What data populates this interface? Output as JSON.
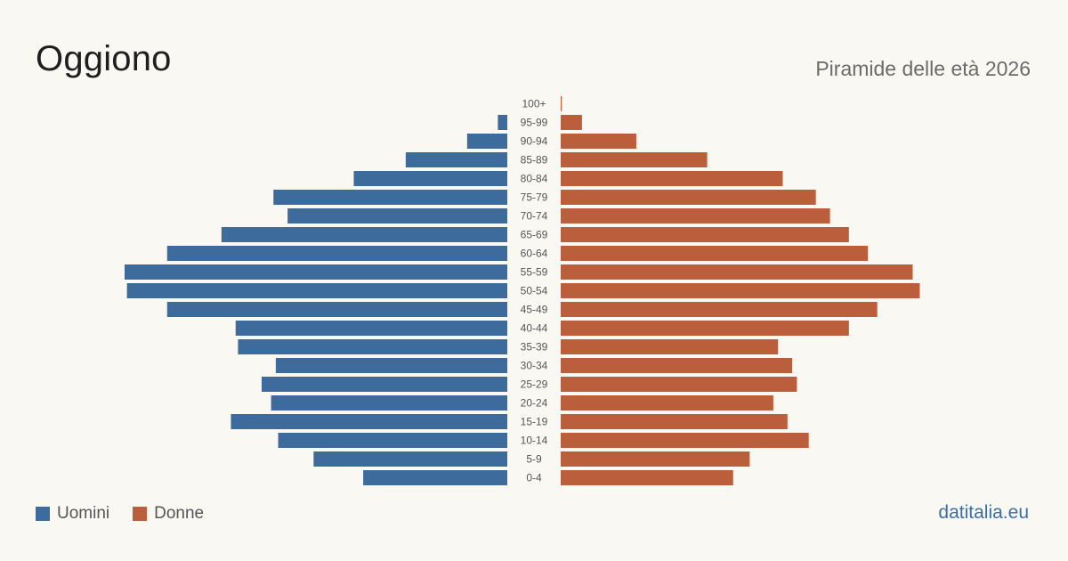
{
  "header": {
    "title": "Oggiono",
    "subtitle": "Piramide delle età 2026"
  },
  "legend": {
    "men_label": "Uomini",
    "women_label": "Donne"
  },
  "brand": "datitalia.eu",
  "colors": {
    "men": "#3d6b9c",
    "women": "#bb5e3c",
    "background": "#faf8f3",
    "label": "#555555"
  },
  "chart_data": {
    "type": "bar",
    "orientation": "horizontal-pyramid",
    "categories": [
      "100+",
      "95-99",
      "90-94",
      "85-89",
      "80-84",
      "75-79",
      "70-74",
      "65-69",
      "60-64",
      "55-59",
      "50-54",
      "45-49",
      "40-44",
      "35-39",
      "30-34",
      "25-29",
      "20-24",
      "15-19",
      "10-14",
      "5-9",
      "0-4"
    ],
    "series": [
      {
        "name": "Uomini",
        "values": [
          0,
          4,
          17,
          43,
          65,
          99,
          93,
          121,
          144,
          162,
          161,
          144,
          115,
          114,
          98,
          104,
          100,
          117,
          97,
          82,
          61
        ]
      },
      {
        "name": "Donne",
        "values": [
          0.3,
          9,
          32,
          62,
          94,
          108,
          114,
          122,
          130,
          149,
          152,
          134,
          122,
          92,
          98,
          100,
          90,
          96,
          105,
          80,
          73
        ]
      }
    ],
    "xlim": [
      0,
      162
    ],
    "legend_position": "bottom-left",
    "grid": false
  }
}
